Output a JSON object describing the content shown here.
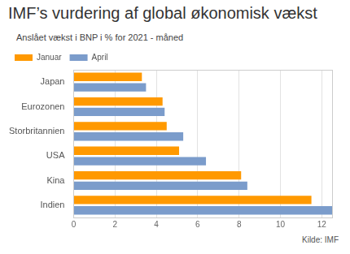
{
  "chart_data": {
    "type": "bar",
    "orientation": "horizontal",
    "title": "IMF’s vurdering af global økonomisk vækst",
    "subtitle": "Anslået vækst i BNP i % for 2021 - måned",
    "source": "Kilde: IMF",
    "categories": [
      "Japan",
      "Eurozonen",
      "Storbritannien",
      "USA",
      "Kina",
      "Indien"
    ],
    "series": [
      {
        "name": "Januar",
        "color": "#ff9900",
        "values": [
          3.3,
          4.3,
          4.5,
          5.1,
          8.1,
          11.5
        ]
      },
      {
        "name": "April",
        "color": "#7b9ccb",
        "values": [
          3.5,
          4.4,
          5.3,
          6.4,
          8.4,
          12.5
        ]
      }
    ],
    "xlim": [
      0,
      12.5
    ],
    "xticks": [
      0,
      2,
      4,
      6,
      8,
      10,
      12
    ],
    "grid": true,
    "legend": "top-left"
  }
}
